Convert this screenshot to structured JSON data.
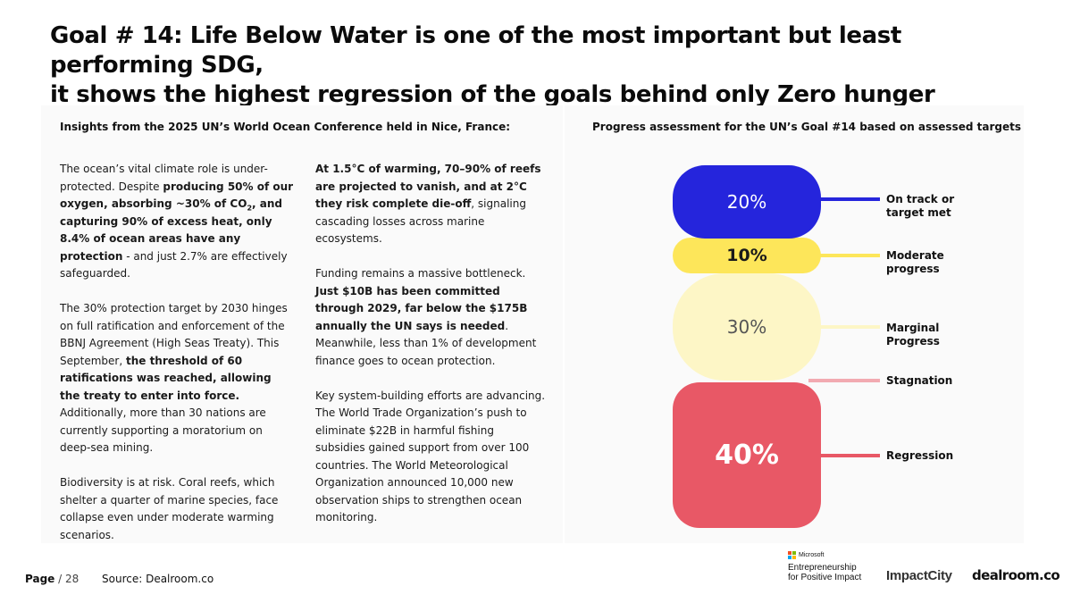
{
  "title": {
    "line1": "Goal # 14: Life Below Water is one of the most important but least performing SDG,",
    "line2": "it shows the highest regression of the goals behind only Zero hunger"
  },
  "insights": {
    "heading": "Insights from the 2025 UN’s World Ocean Conference held in Nice, France:",
    "col1": {
      "p1": {
        "a": "The ocean’s vital climate role is under-protected. Despite ",
        "b1": "producing 50% of our oxygen, absorbing ~30% of CO",
        "b_sub": "2",
        "b2": ", and capturing 90% of excess heat, only 8.4% of ocean areas have any protection",
        "c": " - and just 2.7% are effectively safeguarded."
      },
      "p2": {
        "a": "The 30% protection target by 2030 hinges on full ratification and enforcement of the BBNJ Agreement (High Seas Treaty). This September, ",
        "b": "the threshold of 60 ratifications was reached, allowing the treaty to enter into force.",
        "c": " Additionally, more than 30 nations are currently supporting a moratorium on deep-sea mining."
      },
      "p3": "Biodiversity is at risk. Coral reefs, which shelter a quarter of marine species, face collapse even under moderate warming scenarios."
    },
    "col2": {
      "p1": {
        "b": "At 1.5°C of warming, 70–90% of reefs are projected to vanish, and at 2°C they risk complete die-off",
        "c": ", signaling cascading losses across marine ecosystems."
      },
      "p2": {
        "a": "Funding remains a massive bottleneck. ",
        "b": "Just $10B has been committed through 2029, far below the $175B annually the UN says is needed",
        "c": ". Meanwhile, less than 1% of development finance goes to ocean protection."
      },
      "p3": "Key system-building efforts are advancing. The World Trade Organization’s push to eliminate $22B in harmful fishing subsidies gained support from over 100 countries. The World Meteorological Organization announced 10,000 new observation ships to strengthen ocean monitoring."
    }
  },
  "chart_data": {
    "type": "bar",
    "title": "Progress assessment for the UN’s Goal #14 based on assessed targets",
    "categories": [
      "On track or target met",
      "Moderate progress",
      "Marginal Progress",
      "Stagnation",
      "Regression"
    ],
    "values": [
      20,
      10,
      30,
      0,
      40
    ],
    "value_labels": [
      "20%",
      "10%",
      "30%",
      "",
      "40%"
    ],
    "legend_lines": [
      [
        "On track or",
        "target met"
      ],
      [
        "Moderate",
        "progress"
      ],
      [
        "Marginal",
        "Progress"
      ],
      [
        "Stagnation"
      ],
      [
        "Regression"
      ]
    ],
    "colors": [
      "#2525dc",
      "#fde65a",
      "#fdf6c6",
      "#f2aab1",
      "#e85866"
    ]
  },
  "footer": {
    "page_label": "Page",
    "page_total": "/ 28",
    "source": "Source:  Dealroom.co"
  },
  "logos": {
    "microsoft": "Microsoft",
    "microsoft_tag_line1": "Entrepreneurship",
    "microsoft_tag_line2": "for Positive Impact",
    "impactcity": "ImpactCity",
    "dealroom": "dealroom.co"
  }
}
